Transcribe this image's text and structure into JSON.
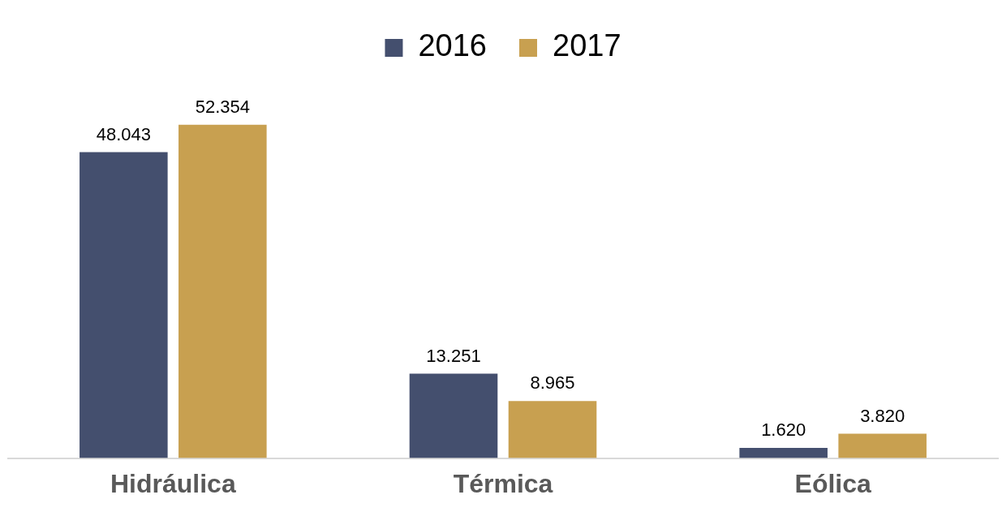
{
  "chart_data": {
    "type": "bar",
    "categories": [
      "Hidráulica",
      "Térmica",
      "Eólica"
    ],
    "series": [
      {
        "name": "2016",
        "color": "#444f6e",
        "values": [
          48043,
          13251,
          1620
        ],
        "value_labels": [
          "48.043",
          "13.251",
          "1.620"
        ]
      },
      {
        "name": "2017",
        "color": "#c8a050",
        "values": [
          52354,
          8965,
          3820
        ],
        "value_labels": [
          "52.354",
          "8.965",
          "3.820"
        ]
      }
    ],
    "legend": "top",
    "grid": false
  }
}
